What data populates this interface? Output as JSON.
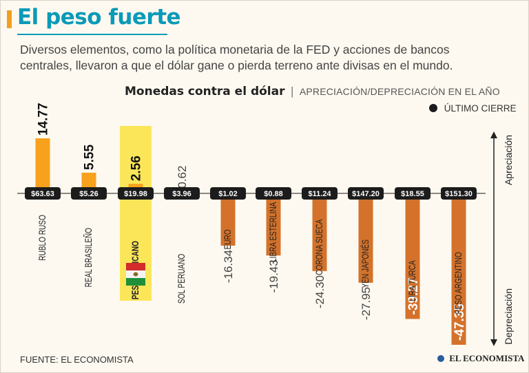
{
  "title": "El peso fuerte",
  "intro": "Diversos elementos, como la política monetaria de la FED y acciones de bancos centrales, llevaron a que el dólar gane o pierda terreno ante divisas en el mundo.",
  "subtitle": {
    "main": "Monedas contra el dólar",
    "separator": "|",
    "sub": "APRECIACIÓN/DEPRECIACIÓN EN EL AÑO"
  },
  "legend": {
    "label": "ÚLTIMO CIERRE"
  },
  "source": "FUENTE: EL ECONOMISTA",
  "logo": "EL ECONOMISTA",
  "colors": {
    "appreciation": "#f7a11c",
    "depreciation": "#d4722b",
    "highlight": "#fbe659",
    "pill": "#1c1c1c",
    "accent": "#0a9ab8"
  },
  "chart_data": {
    "type": "bar",
    "title": "Monedas contra el dólar",
    "unit": "% apreciación/depreciación en el año",
    "up_label": "Apreciación",
    "down_label": "Depreciación",
    "highlight": "PESO MEXICANO",
    "ylim": [
      -47.35,
      14.77
    ],
    "categories": [
      "RUBLO RUSO",
      "REAL BRASILEÑO",
      "PESO MEXICANO",
      "SOL PERUANO",
      "EURO",
      "LIBRA ESTERLINA",
      "CORONA SUECA",
      "YEN JAPONÉS",
      "LIRA TURCA",
      "PESO ARGENTINO"
    ],
    "values": [
      14.77,
      5.55,
      2.56,
      0.62,
      -16.34,
      -19.43,
      -24.3,
      -27.95,
      -39.27,
      -47.35
    ],
    "value_labels": [
      "14.77",
      "5.55",
      "2.56",
      "0.62",
      "-16.34",
      "-19.43",
      "-24.30",
      "-27.95",
      "-39.27",
      "-47.35"
    ],
    "last_close": [
      "$63.63",
      "$5.26",
      "$19.98",
      "$3.96",
      "$1.02",
      "$0.88",
      "$11.24",
      "$147.20",
      "$18.55",
      "$151.30"
    ]
  }
}
